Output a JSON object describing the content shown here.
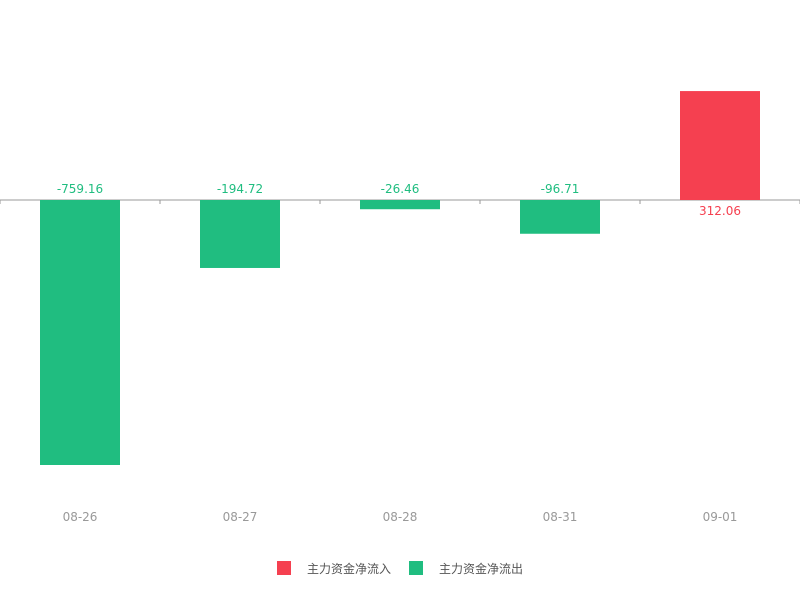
{
  "chart_data": {
    "type": "bar",
    "categories": [
      "08-26",
      "08-27",
      "08-28",
      "08-31",
      "09-01"
    ],
    "values": [
      -759.16,
      -194.72,
      -26.46,
      -96.71,
      312.06
    ],
    "labels": [
      "-759.16",
      "-194.72",
      "-26.46",
      "-96.71",
      "312.06"
    ],
    "ylim": [
      -759.16,
      312.06
    ],
    "grid": false,
    "legend_position": "bottom",
    "series": [
      {
        "name": "主力资金净流入",
        "color": "#f54050"
      },
      {
        "name": "主力资金净流出",
        "color": "#20bd80"
      }
    ]
  },
  "legend": {
    "inflow_label": "主力资金净流入",
    "outflow_label": "主力资金净流出"
  },
  "colors": {
    "inflow": "#f54050",
    "outflow": "#20bd80",
    "axis": "#999999",
    "tick_text": "#999999"
  }
}
